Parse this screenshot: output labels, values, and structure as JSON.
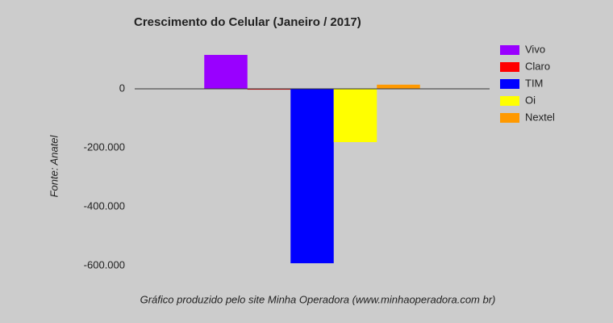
{
  "chart_data": {
    "type": "bar",
    "title": "Crescimento do Celular (Janeiro / 2017)",
    "y_label": "Fonte: Anatel",
    "footer": "Gráfico produzido pelo site Minha Operadora (www.minhaoperadora.com br)",
    "categories": [
      null
    ],
    "series": [
      {
        "name": "Vivo",
        "color": "#9900ff",
        "values": [
          115000
        ]
      },
      {
        "name": "Claro",
        "color": "#ff0000",
        "values": [
          -3000
        ]
      },
      {
        "name": "TIM",
        "color": "#0000ff",
        "values": [
          -592000
        ]
      },
      {
        "name": "Oi",
        "color": "#ffff00",
        "values": [
          -181000
        ]
      },
      {
        "name": "Nextel",
        "color": "#ff9900",
        "values": [
          14000
        ]
      }
    ],
    "ylim": [
      -603000,
      178000
    ],
    "yticks": [
      0,
      {
        "value": -200000,
        "label": "-200.000"
      },
      {
        "value": -400000,
        "label": "-400.000"
      },
      {
        "value": -600000,
        "label": "-600.000"
      }
    ],
    "grid": false,
    "legend": "right"
  }
}
